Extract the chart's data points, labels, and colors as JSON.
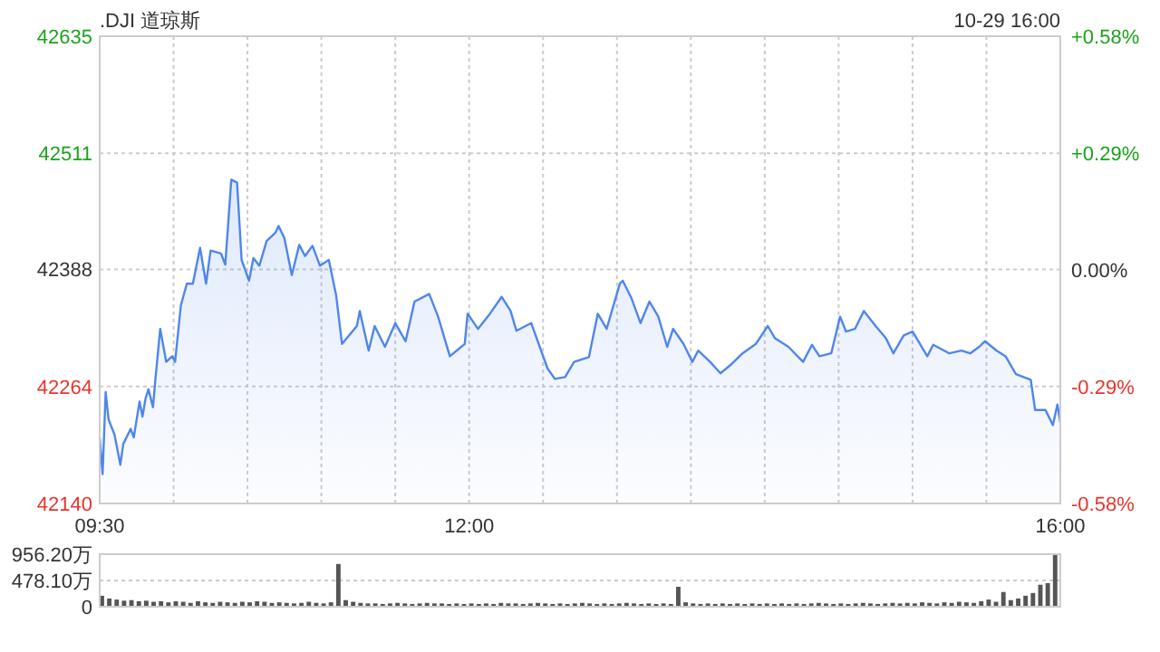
{
  "chart_data": [
    {
      "type": "area",
      "title": ".DJI 道琼斯",
      "annotations": [
        "10-29 16:00"
      ],
      "x": [
        9.5,
        9.52,
        9.54,
        9.56,
        9.6,
        9.64,
        9.66,
        9.71,
        9.73,
        9.77,
        9.79,
        9.81,
        9.83,
        9.86,
        9.88,
        9.91,
        9.95,
        9.99,
        10.01,
        10.05,
        10.09,
        10.13,
        10.18,
        10.22,
        10.25,
        10.32,
        10.35,
        10.39,
        10.43,
        10.46,
        10.51,
        10.54,
        10.58,
        10.63,
        10.69,
        10.71,
        10.75,
        10.8,
        10.85,
        10.89,
        10.94,
        10.99,
        11.05,
        11.1,
        11.14,
        11.24,
        11.26,
        11.32,
        11.36,
        11.43,
        11.5,
        11.57,
        11.63,
        11.73,
        11.79,
        11.87,
        11.97,
        11.99,
        12.06,
        12.14,
        12.22,
        12.28,
        12.32,
        12.42,
        12.53,
        12.58,
        12.65,
        12.71,
        12.81,
        12.87,
        12.93,
        13.02,
        13.04,
        13.1,
        13.16,
        13.22,
        13.28,
        13.34,
        13.38,
        13.45,
        13.51,
        13.55,
        13.63,
        13.7,
        13.77,
        13.85,
        13.94,
        14.02,
        14.07,
        14.16,
        14.26,
        14.32,
        14.37,
        14.45,
        14.51,
        14.55,
        14.61,
        14.67,
        14.75,
        14.82,
        14.87,
        14.94,
        15.0,
        15.1,
        15.14,
        15.25,
        15.33,
        15.39,
        15.45,
        15.49,
        15.57,
        15.63,
        15.7,
        15.8,
        15.83,
        15.9,
        15.95,
        15.98,
        16.0
      ],
      "series": [
        {
          "color": "#4f86ec",
          "values": [
            42210,
            42171,
            42258,
            42229,
            42213,
            42181,
            42203,
            42219,
            42210,
            42248,
            42232,
            42251,
            42261,
            42242,
            42277,
            42325,
            42290,
            42296,
            42290,
            42350,
            42373,
            42373,
            42411,
            42373,
            42408,
            42405,
            42393,
            42483,
            42480,
            42398,
            42376,
            42400,
            42392,
            42418,
            42427,
            42434,
            42421,
            42382,
            42414,
            42402,
            42413,
            42392,
            42398,
            42360,
            42309,
            42328,
            42344,
            42302,
            42328,
            42306,
            42331,
            42312,
            42354,
            42362,
            42338,
            42296,
            42309,
            42341,
            42325,
            42341,
            42359,
            42344,
            42323,
            42331,
            42283,
            42272,
            42274,
            42290,
            42295,
            42341,
            42325,
            42373,
            42376,
            42357,
            42331,
            42354,
            42338,
            42306,
            42325,
            42309,
            42290,
            42302,
            42290,
            42278,
            42287,
            42299,
            42309,
            42328,
            42315,
            42306,
            42290,
            42308,
            42296,
            42299,
            42338,
            42322,
            42325,
            42344,
            42328,
            42315,
            42299,
            42318,
            42322,
            42296,
            42308,
            42299,
            42302,
            42299,
            42306,
            42312,
            42302,
            42296,
            42277,
            42271,
            42239,
            42239,
            42223,
            42245,
            42226
          ]
        }
      ],
      "xlim": [
        9.5,
        16
      ],
      "xticks": [
        {
          "value": 9.5,
          "label": "09:30"
        },
        {
          "value": 10,
          "label": null
        },
        {
          "value": 10.5,
          "label": null
        },
        {
          "value": 11,
          "label": null
        },
        {
          "value": 11.5,
          "label": null
        },
        {
          "value": 12,
          "label": "12:00"
        },
        {
          "value": 12.5,
          "label": null
        },
        {
          "value": 13,
          "label": null
        },
        {
          "value": 13.5,
          "label": null
        },
        {
          "value": 14,
          "label": null
        },
        {
          "value": 14.5,
          "label": null
        },
        {
          "value": 15,
          "label": null
        },
        {
          "value": 15.5,
          "label": null
        },
        {
          "value": 16,
          "label": "16:00"
        }
      ],
      "ylim": [
        42140,
        42635
      ],
      "yticks": [
        42140,
        42264,
        42388,
        42511,
        42635
      ],
      "y2lim": [
        -0.58,
        0.58
      ],
      "y2ticks": [
        {
          "value": -0.58,
          "label": "-0.58%"
        },
        {
          "value": -0.29,
          "label": "-0.29%"
        },
        {
          "value": 0,
          "label": "0.00%"
        },
        {
          "value": 0.29,
          "label": "+0.29%"
        },
        {
          "value": 0.58,
          "label": "+0.58%"
        }
      ],
      "grid": true
    },
    {
      "type": "bar",
      "xlim": [
        9.5,
        16
      ],
      "tick_labels": "y",
      "ylim": [
        0,
        956.2
      ],
      "yticks": [
        {
          "value": 0,
          "label": "0"
        },
        {
          "value": 478.1,
          "label": "478.10万"
        },
        {
          "value": 956.2,
          "label": "956.20万"
        }
      ],
      "grid": "y",
      "x": [
        9.5,
        9.55,
        9.6,
        9.65,
        9.7,
        9.75,
        9.8,
        9.85,
        9.9,
        9.95,
        10,
        10.05,
        10.1,
        10.15,
        10.2,
        10.25,
        10.3,
        10.35,
        10.4,
        10.45,
        10.5,
        10.55,
        10.6,
        10.65,
        10.7,
        10.75,
        10.8,
        10.85,
        10.9,
        10.95,
        11,
        11.05,
        11.1,
        11.15,
        11.2,
        11.25,
        11.3,
        11.35,
        11.4,
        11.45,
        11.5,
        11.55,
        11.6,
        11.65,
        11.7,
        11.75,
        11.8,
        11.85,
        11.9,
        11.95,
        12,
        12.05,
        12.1,
        12.15,
        12.2,
        12.25,
        12.3,
        12.35,
        12.4,
        12.45,
        12.5,
        12.55,
        12.6,
        12.65,
        12.7,
        12.75,
        12.8,
        12.85,
        12.9,
        12.95,
        13,
        13.05,
        13.1,
        13.15,
        13.2,
        13.25,
        13.3,
        13.35,
        13.4,
        13.45,
        13.5,
        13.55,
        13.6,
        13.65,
        13.7,
        13.75,
        13.8,
        13.85,
        13.9,
        13.95,
        14,
        14.05,
        14.1,
        14.15,
        14.2,
        14.25,
        14.3,
        14.35,
        14.4,
        14.45,
        14.5,
        14.55,
        14.6,
        14.65,
        14.7,
        14.75,
        14.8,
        14.85,
        14.9,
        14.95,
        15,
        15.05,
        15.1,
        15.15,
        15.2,
        15.25,
        15.3,
        15.35,
        15.4,
        15.45,
        15.5,
        15.55,
        15.6,
        15.65,
        15.7,
        15.75,
        15.8,
        15.85,
        15.9,
        15.95
      ],
      "series": [
        {
          "color": "#555555",
          "values": [
            200,
            150,
            130,
            110,
            120,
            100,
            110,
            90,
            100,
            80,
            100,
            90,
            70,
            100,
            80,
            70,
            90,
            80,
            70,
            90,
            80,
            100,
            90,
            70,
            80,
            70,
            60,
            70,
            90,
            70,
            60,
            80,
            778,
            120,
            90,
            70,
            60,
            60,
            50,
            60,
            70,
            60,
            50,
            60,
            70,
            60,
            60,
            50,
            60,
            50,
            60,
            50,
            60,
            50,
            70,
            60,
            60,
            50,
            60,
            70,
            60,
            50,
            60,
            50,
            60,
            70,
            60,
            50,
            60,
            50,
            60,
            70,
            60,
            50,
            60,
            50,
            60,
            50,
            363,
            80,
            60,
            50,
            60,
            50,
            60,
            50,
            60,
            50,
            60,
            50,
            60,
            50,
            60,
            50,
            60,
            50,
            60,
            70,
            60,
            50,
            60,
            50,
            60,
            70,
            60,
            50,
            60,
            70,
            60,
            70,
            60,
            80,
            70,
            60,
            80,
            70,
            90,
            80,
            70,
            100,
            130,
            90,
            268,
            120,
            150,
            200,
            250,
            400,
            430,
            956
          ]
        }
      ]
    }
  ]
}
